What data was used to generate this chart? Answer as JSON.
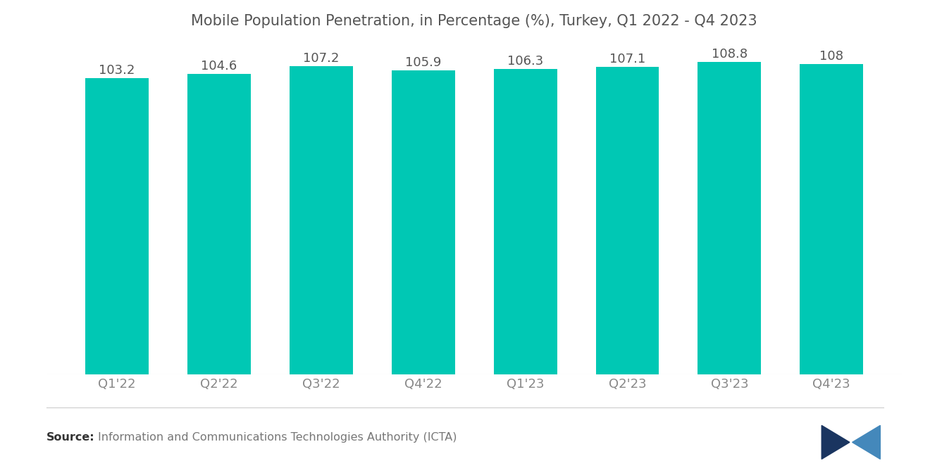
{
  "title": "Mobile Population Penetration, in Percentage (%), Turkey, Q1 2022 - Q4 2023",
  "categories": [
    "Q1'22",
    "Q2'22",
    "Q3'22",
    "Q4'22",
    "Q1'23",
    "Q2'23",
    "Q3'23",
    "Q4'23"
  ],
  "values": [
    103.2,
    104.6,
    107.2,
    105.9,
    106.3,
    107.1,
    108.8,
    108.0
  ],
  "bar_color": "#00C8B4",
  "background_color": "#ffffff",
  "title_color": "#555555",
  "label_color": "#888888",
  "value_label_color": "#555555",
  "source_bold": "Source:",
  "source_text": "Information and Communications Technologies Authority (ICTA)",
  "title_fontsize": 15,
  "axis_label_fontsize": 13,
  "value_label_fontsize": 13,
  "source_fontsize": 11.5,
  "ylim_min": 0,
  "ylim_max": 114,
  "bar_width": 0.62
}
